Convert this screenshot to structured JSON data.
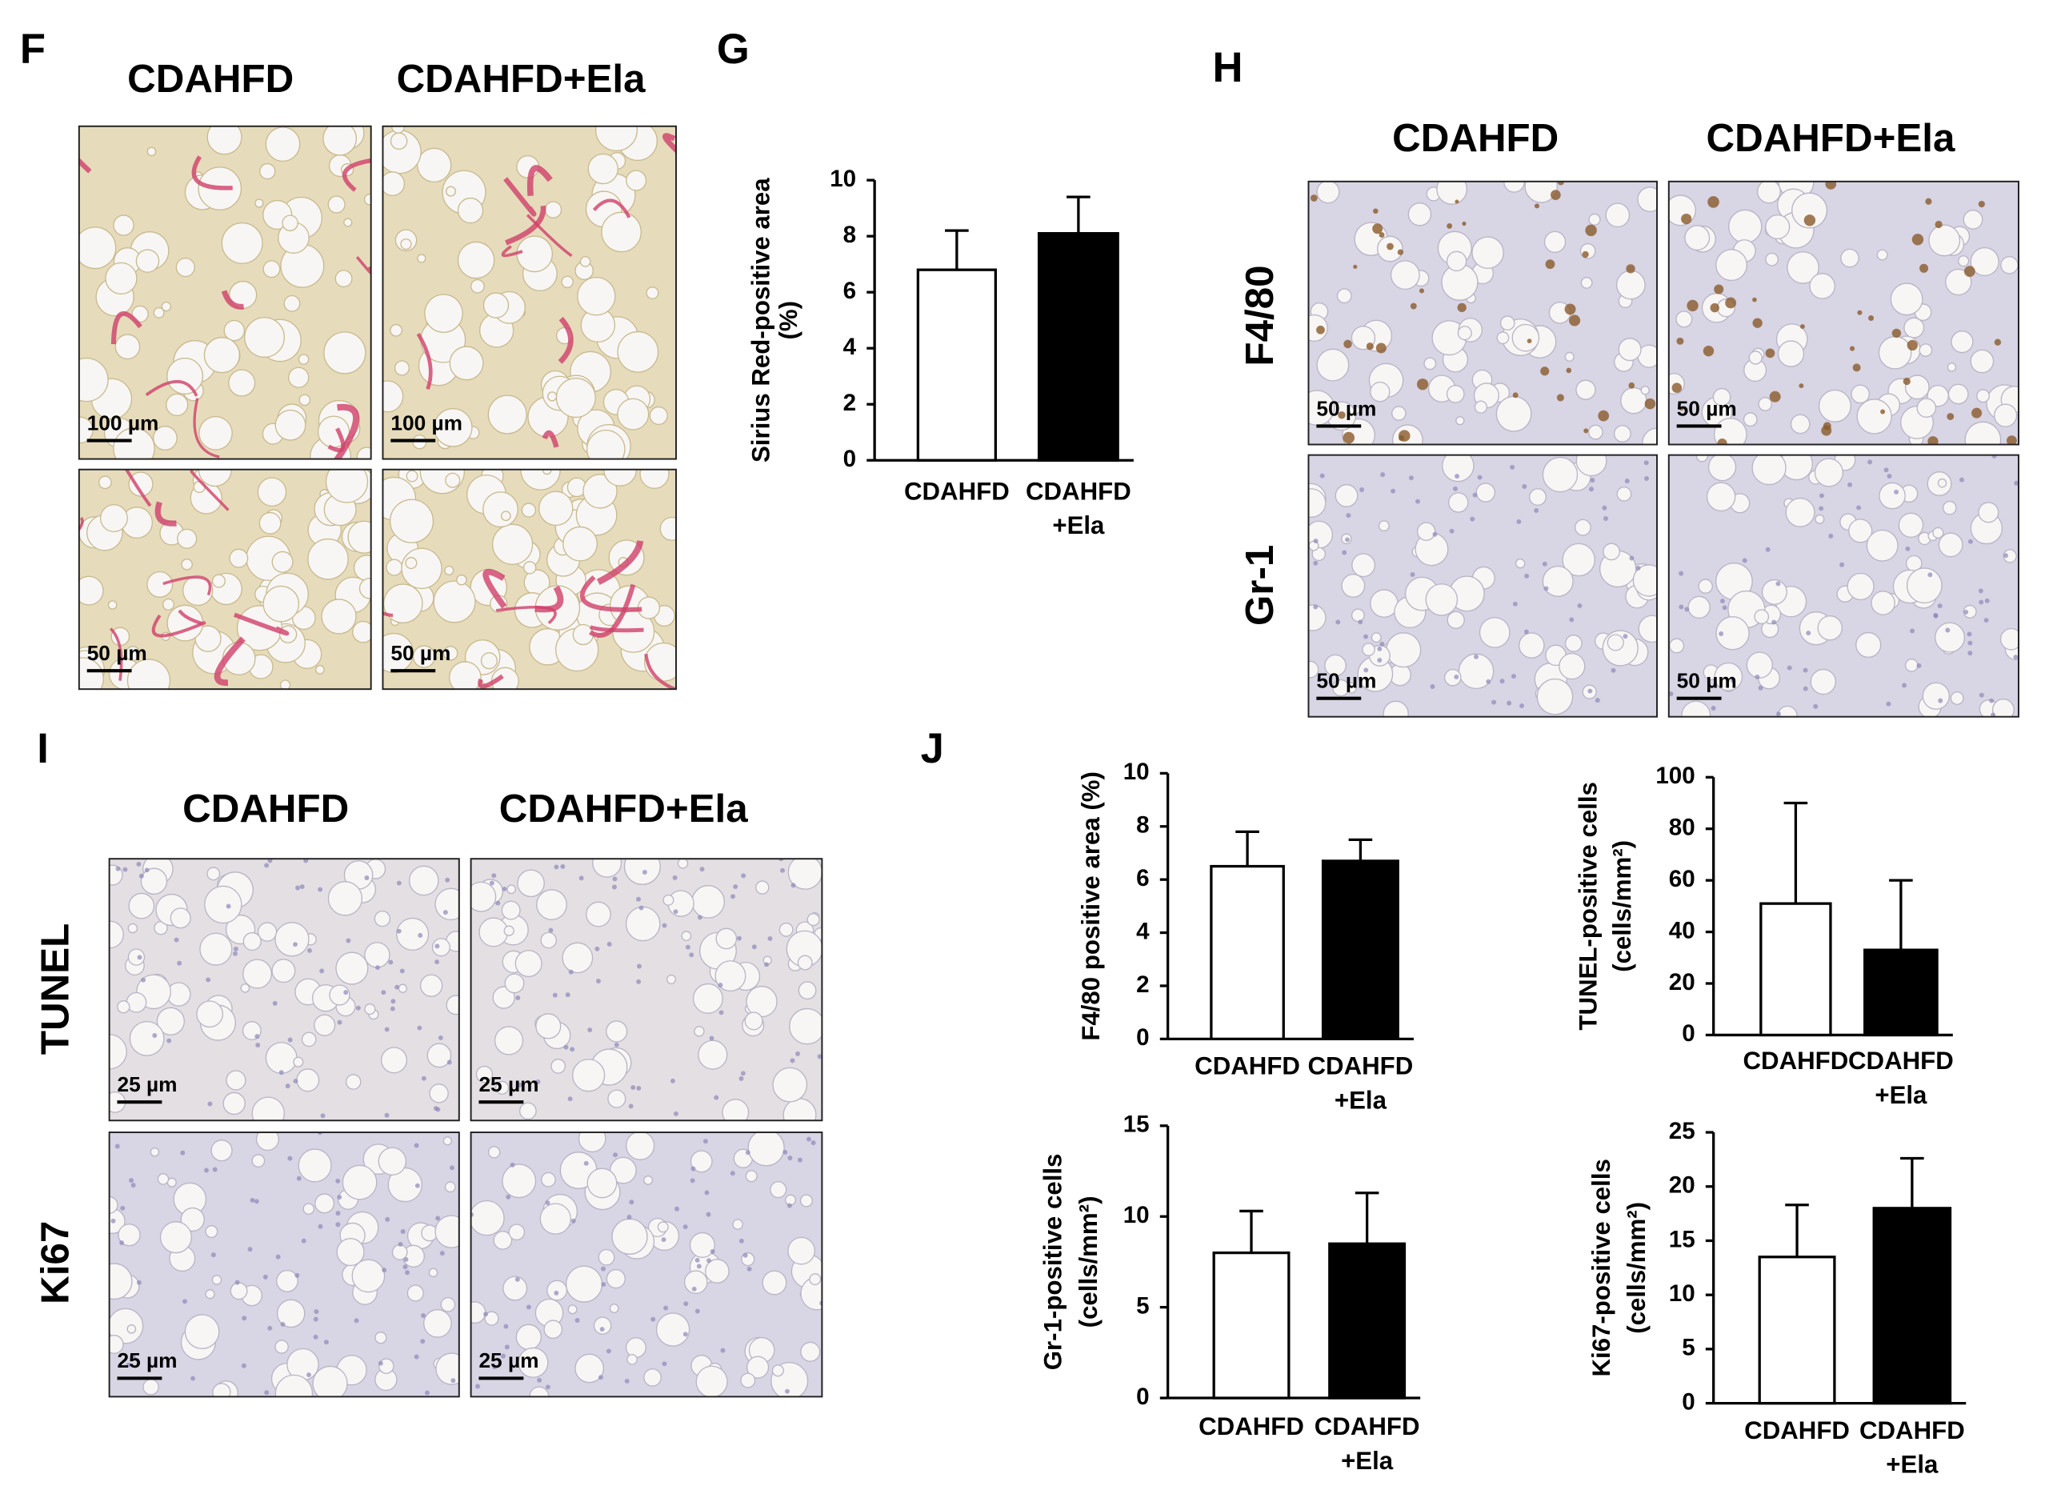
{
  "panels": {
    "F": {
      "label": "F",
      "columns": [
        "CDAHFD",
        "CDAHFD+Ela"
      ],
      "scale_bars": [
        "100 µm",
        "100 µm",
        "50 µm",
        "50 µm"
      ]
    },
    "G": {
      "label": "G"
    },
    "H": {
      "label": "H",
      "columns": [
        "CDAHFD",
        "CDAHFD+Ela"
      ],
      "rows": [
        "F4/80",
        "Gr-1"
      ],
      "scale_bars": [
        "50 µm",
        "50 µm",
        "50 µm",
        "50 µm"
      ]
    },
    "I": {
      "label": "I",
      "columns": [
        "CDAHFD",
        "CDAHFD+Ela"
      ],
      "rows": [
        "TUNEL",
        "Ki67"
      ],
      "scale_bars": [
        "25 µm",
        "25 µm",
        "25 µm",
        "25 µm"
      ]
    },
    "J": {
      "label": "J"
    }
  },
  "chart_data": [
    {
      "type": "bar",
      "ylabel": [
        "Sirius Red-positive area",
        "(%)"
      ],
      "categories": [
        "CDAHFD",
        "CDAHFD\n+Ela"
      ],
      "values": [
        6.8,
        8.1
      ],
      "errors": [
        1.4,
        1.3
      ],
      "colors": [
        "#ffffff",
        "#000000"
      ],
      "ylim": [
        0,
        10
      ],
      "yticks": [
        0,
        2,
        4,
        6,
        8,
        10
      ]
    },
    {
      "type": "bar",
      "ylabel": [
        "F4/80 positive area (%)"
      ],
      "categories": [
        "CDAHFD",
        "CDAHFD\n+Ela"
      ],
      "values": [
        6.5,
        6.7
      ],
      "errors": [
        1.3,
        0.8
      ],
      "colors": [
        "#ffffff",
        "#000000"
      ],
      "ylim": [
        0,
        10
      ],
      "yticks": [
        0,
        2,
        4,
        6,
        8,
        10
      ]
    },
    {
      "type": "bar",
      "ylabel": [
        "TUNEL-positive cells",
        "(cells/mm²)"
      ],
      "categories": [
        "CDAHFD",
        "CDAHFD\n+Ela"
      ],
      "values": [
        51,
        33
      ],
      "errors": [
        39,
        27
      ],
      "colors": [
        "#ffffff",
        "#000000"
      ],
      "ylim": [
        0,
        100
      ],
      "yticks": [
        0,
        20,
        40,
        60,
        80,
        100
      ]
    },
    {
      "type": "bar",
      "ylabel": [
        "Gr-1-positive cells",
        "(cells/mm²)"
      ],
      "categories": [
        "CDAHFD",
        "CDAHFD\n+Ela"
      ],
      "values": [
        8.0,
        8.5
      ],
      "errors": [
        2.3,
        2.8
      ],
      "colors": [
        "#ffffff",
        "#000000"
      ],
      "ylim": [
        0,
        15
      ],
      "yticks": [
        0,
        5,
        10,
        15
      ]
    },
    {
      "type": "bar",
      "ylabel": [
        "Ki67-positive cells",
        "(cells/mm²)"
      ],
      "categories": [
        "CDAHFD",
        "CDAHFD\n+Ela"
      ],
      "values": [
        13.5,
        18
      ],
      "errors": [
        4.8,
        4.6
      ],
      "colors": [
        "#ffffff",
        "#000000"
      ],
      "ylim": [
        0,
        25
      ],
      "yticks": [
        0,
        5,
        10,
        15,
        20,
        25
      ]
    }
  ]
}
